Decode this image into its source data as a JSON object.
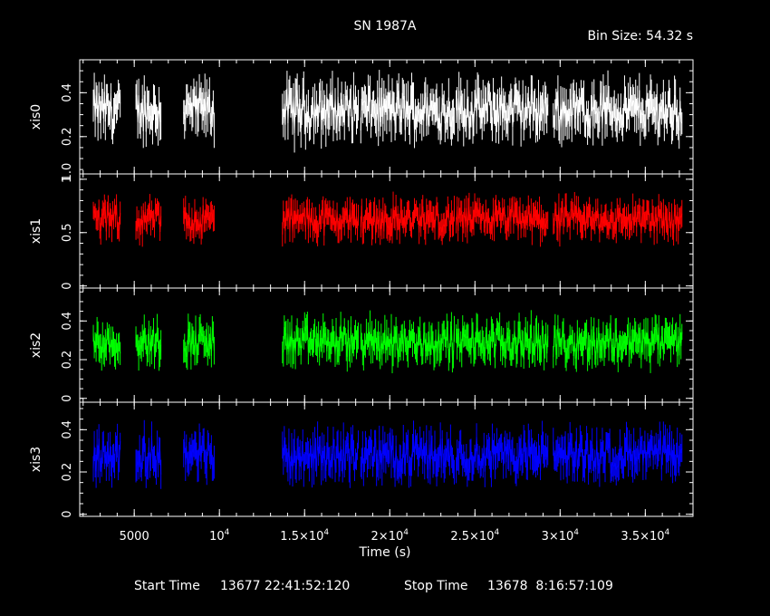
{
  "chart_data": {
    "type": "line",
    "title": "SN 1987A",
    "subtitle": "Bin Size: 54.32 s",
    "xlabel": "Time (s)",
    "xlim": [
      1800,
      37800
    ],
    "x_ticks": [
      {
        "value": 5000,
        "base": "5000",
        "sup": ""
      },
      {
        "value": 10000,
        "base": "10",
        "sup": "4"
      },
      {
        "value": 15000,
        "base": "1.5×10",
        "sup": "4"
      },
      {
        "value": 20000,
        "base": "2×10",
        "sup": "4"
      },
      {
        "value": 25000,
        "base": "2.5×10",
        "sup": "4"
      },
      {
        "value": 30000,
        "base": "3×10",
        "sup": "4"
      },
      {
        "value": 35000,
        "base": "3.5×10",
        "sup": "4"
      }
    ],
    "footer": {
      "start_label": "Start Time",
      "start_value": "13677 22:41:52:120",
      "stop_label": "Stop Time",
      "stop_value": "13678  8:16:57:109"
    },
    "segments": [
      [
        2600,
        4200
      ],
      [
        5100,
        6600
      ],
      [
        7900,
        9700
      ],
      [
        13700,
        18200
      ],
      [
        18300,
        23800
      ],
      [
        23900,
        29300
      ],
      [
        29600,
        37200
      ]
    ],
    "series": [
      {
        "name": "xis0",
        "color": "#ffffff",
        "ylim": [
          0.03,
          0.55
        ],
        "yticks": [
          0.2,
          0.4
        ],
        "edge_labels": [
          "1.0"
        ],
        "mean": 0.32,
        "amp": 0.09
      },
      {
        "name": "xis1",
        "color": "#ff0000",
        "ylim": [
          -0.02,
          1.05
        ],
        "yticks": [
          0,
          0.5,
          1
        ],
        "edge_labels": [],
        "mean": 0.62,
        "amp": 0.13
      },
      {
        "name": "xis2",
        "color": "#00ff00",
        "ylim": [
          -0.02,
          0.57
        ],
        "yticks": [
          0,
          0.2,
          0.4
        ],
        "edge_labels": [],
        "mean": 0.29,
        "amp": 0.08
      },
      {
        "name": "xis3",
        "color": "#0000ff",
        "ylim": [
          -0.01,
          0.53
        ],
        "yticks": [
          0,
          0.2,
          0.4
        ],
        "edge_labels": [],
        "mean": 0.28,
        "amp": 0.08
      }
    ]
  }
}
